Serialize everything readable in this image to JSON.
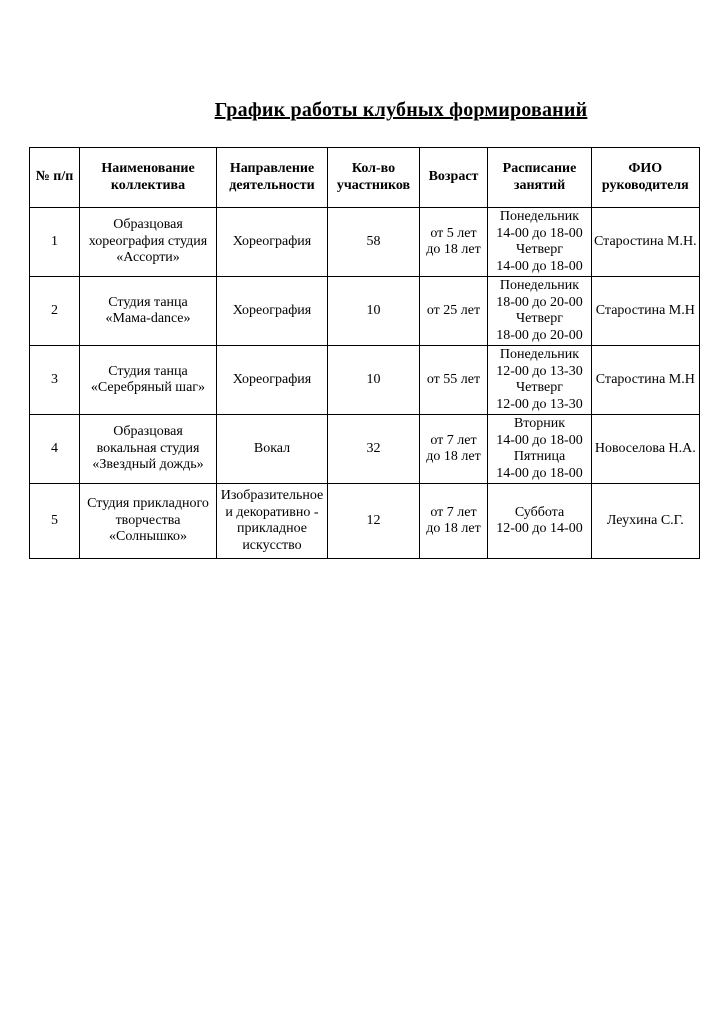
{
  "doc": {
    "title": "График работы клубных формирований"
  },
  "table": {
    "headers": [
      {
        "id": "num",
        "lines": [
          "№ п/п"
        ]
      },
      {
        "id": "name",
        "lines": [
          "Наименование",
          "коллектива"
        ]
      },
      {
        "id": "direction",
        "lines": [
          "Направление",
          "деятельности"
        ]
      },
      {
        "id": "participants",
        "lines": [
          "Кол-во",
          "участников"
        ]
      },
      {
        "id": "age",
        "lines": [
          "Возраст"
        ]
      },
      {
        "id": "schedule",
        "lines": [
          "Расписание",
          "занятий"
        ]
      },
      {
        "id": "leader",
        "lines": [
          "ФИО",
          "руководителя"
        ]
      }
    ],
    "rows": [
      {
        "cells": [
          [
            "1"
          ],
          [
            "Образцовая",
            "хореография студия",
            "«Ассорти»"
          ],
          [
            "Хореография"
          ],
          [
            "58"
          ],
          [
            "от 5 лет",
            "до 18 лет"
          ],
          [
            "Понедельник",
            "14-00 до 18-00",
            "Четверг",
            "14-00 до 18-00"
          ],
          [
            "Старостина М.Н."
          ]
        ]
      },
      {
        "cells": [
          [
            "2"
          ],
          [
            "Студия танца",
            "«Мама-dance»"
          ],
          [
            "Хореография"
          ],
          [
            "10"
          ],
          [
            "от 25 лет"
          ],
          [
            "Понедельник",
            "18-00 до 20-00",
            "Четверг",
            "18-00 до 20-00"
          ],
          [
            "Старостина М.Н"
          ]
        ]
      },
      {
        "cells": [
          [
            "3"
          ],
          [
            "Студия танца",
            "«Серебряный шаг»"
          ],
          [
            "Хореография"
          ],
          [
            "10"
          ],
          [
            "от 55 лет"
          ],
          [
            "Понедельник",
            "12-00 до 13-30",
            "Четверг",
            "12-00 до 13-30"
          ],
          [
            "Старостина М.Н"
          ]
        ]
      },
      {
        "cells": [
          [
            "4"
          ],
          [
            "Образцовая",
            "вокальная студия",
            "«Звездный дождь»"
          ],
          [
            "Вокал"
          ],
          [
            "32"
          ],
          [
            "от 7 лет",
            "до 18 лет"
          ],
          [
            "Вторник",
            "14-00 до 18-00",
            "Пятница",
            "14-00 до 18-00"
          ],
          [
            "Новоселова Н.А."
          ]
        ]
      },
      {
        "cells": [
          [
            "5"
          ],
          [
            "Студия прикладного",
            "творчества",
            "«Солнышко»"
          ],
          [
            "Изобразительное",
            "и декоративно -",
            "прикладное",
            "искусство"
          ],
          [
            "12"
          ],
          [
            "от 7 лет",
            "до 18 лет"
          ],
          [
            "Суббота",
            "12-00 до 14-00"
          ],
          [
            "Леухина С.Г."
          ]
        ]
      }
    ]
  }
}
